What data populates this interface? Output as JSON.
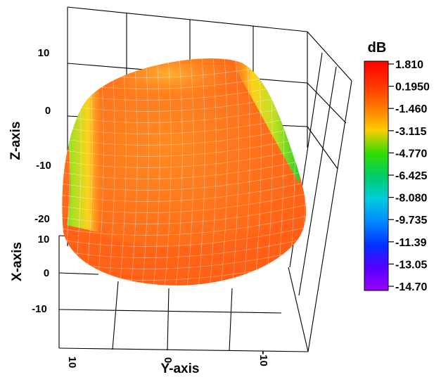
{
  "chart_data": {
    "type": "3d-surface",
    "title": "",
    "colorbar": {
      "title": "dB",
      "ticks": [
        "1.810",
        "0.1950",
        "-1.460",
        "-3.115",
        "-4.770",
        "-6.425",
        "-8.080",
        "-9.735",
        "-11.39",
        "-13.05",
        "-14.70"
      ],
      "range": [
        -14.7,
        1.81
      ],
      "colors": [
        "#ff0000",
        "#ff3300",
        "#ff7700",
        "#ffcc00",
        "#33dd00",
        "#00cc66",
        "#00ccdd",
        "#0088ff",
        "#0033ff",
        "#5500ff",
        "#9900ff"
      ]
    },
    "axes": {
      "z": {
        "label": "Z-axis",
        "ticks": [
          "10",
          "0",
          "-10",
          "-20"
        ]
      },
      "x": {
        "label": "X-axis",
        "ticks": [
          "10",
          "0",
          "-10"
        ]
      },
      "y": {
        "label": "Y-axis",
        "ticks": [
          "10",
          "0",
          "-10"
        ]
      }
    },
    "surface_colors": {
      "main": "#ff7a1c",
      "highlight": "#ffb02a",
      "edge_low": "#33dd22"
    }
  }
}
